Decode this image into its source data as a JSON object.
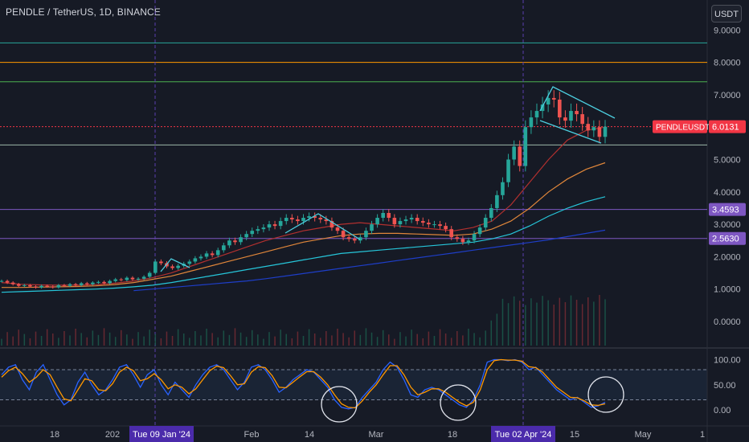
{
  "header": {
    "title": "PENDLE / TetherUS, 1D, BINANCE",
    "currency": "USDT"
  },
  "chart_data": {
    "type": "candlestick",
    "symbol": "PENDLE / TetherUS",
    "interval": "1D",
    "exchange": "BINANCE",
    "price_axis": {
      "ticks": [
        9.0,
        8.0,
        7.0,
        6.0,
        5.0,
        4.0,
        3.0,
        2.0,
        1.0,
        0.0
      ],
      "labels": [
        "9.0000",
        "8.0000",
        "7.0000",
        "6.0000",
        "5.0000",
        "4.0000",
        "3.0000",
        "2.0000",
        "1.0000",
        "0.0000"
      ]
    },
    "time_axis": {
      "labels": [
        "18",
        "202",
        "Tue 09 Jan '24",
        "Feb",
        "14",
        "Mar",
        "18",
        "Tue 02 Apr '24",
        "15",
        "May",
        "1"
      ]
    },
    "last_price": {
      "label": "PENDLEUSDT",
      "value": "6.0131",
      "color": "#f23645"
    },
    "price_labels": [
      {
        "value": "3.4593",
        "color": "#7e57c2"
      },
      {
        "value": "2.5630",
        "color": "#7e57c2"
      }
    ],
    "horizontal_levels": [
      {
        "price": 8.6,
        "color": "#26a69a"
      },
      {
        "price": 8.0,
        "color": "#ff9800"
      },
      {
        "price": 7.4,
        "color": "#4caf50"
      },
      {
        "price": 6.0131,
        "color": "#f23645",
        "style": "dotted"
      },
      {
        "price": 5.45,
        "color": "#9db8a8"
      },
      {
        "price": 3.4593,
        "color": "#7e57c2"
      },
      {
        "price": 2.563,
        "color": "#7e57c2"
      }
    ],
    "vertical_markers": [
      "Tue 09 Jan '24",
      "Tue 02 Apr '24"
    ],
    "close_series": [
      1.25,
      1.2,
      1.15,
      1.1,
      1.12,
      1.08,
      1.05,
      1.1,
      1.08,
      1.05,
      1.12,
      1.1,
      1.15,
      1.12,
      1.18,
      1.15,
      1.2,
      1.22,
      1.18,
      1.25,
      1.3,
      1.28,
      1.35,
      1.3,
      1.32,
      1.38,
      1.5,
      1.85,
      1.8,
      1.7,
      1.65,
      1.72,
      1.78,
      1.85,
      1.95,
      2.0,
      2.1,
      2.05,
      2.2,
      2.35,
      2.5,
      2.45,
      2.6,
      2.7,
      2.8,
      2.85,
      2.9,
      3.0,
      2.95,
      3.1,
      3.2,
      3.15,
      3.1,
      3.2,
      3.25,
      3.2,
      3.15,
      3.1,
      2.9,
      2.8,
      2.6,
      2.55,
      2.5,
      2.6,
      2.8,
      3.0,
      3.2,
      3.35,
      3.2,
      3.0,
      3.1,
      3.15,
      3.2,
      3.1,
      3.05,
      3.0,
      3.0,
      2.95,
      2.85,
      2.6,
      2.55,
      2.45,
      2.5,
      2.7,
      2.9,
      3.2,
      3.5,
      3.9,
      4.3,
      5.0,
      5.4,
      4.8,
      6.0,
      6.3,
      6.5,
      6.7,
      6.9,
      6.85,
      6.3,
      6.2,
      6.5,
      6.4,
      6.1,
      5.9,
      6.0,
      5.7,
      6.0131
    ],
    "moving_averages": [
      {
        "name": "",
        "color": "#b2302f",
        "values": [
          1.2,
          1.15,
          1.13,
          1.12,
          1.12,
          1.14,
          1.18,
          1.25,
          1.35,
          1.5,
          1.7,
          1.9,
          2.1,
          2.3,
          2.5,
          2.65,
          2.8,
          2.9,
          3.0,
          3.05,
          3.0,
          2.95,
          2.9,
          2.85,
          2.8,
          2.9,
          3.1,
          3.6,
          4.3,
          5.0,
          5.6,
          5.9,
          6.0
        ]
      },
      {
        "name": "",
        "color": "#e0863a",
        "values": [
          1.05,
          1.05,
          1.06,
          1.07,
          1.08,
          1.1,
          1.14,
          1.2,
          1.3,
          1.4,
          1.55,
          1.7,
          1.85,
          2.0,
          2.15,
          2.3,
          2.45,
          2.55,
          2.65,
          2.7,
          2.72,
          2.72,
          2.7,
          2.68,
          2.66,
          2.7,
          2.85,
          3.1,
          3.5,
          4.0,
          4.4,
          4.7,
          4.9
        ]
      },
      {
        "name": "",
        "color": "#26c6da",
        "values": [
          0.9,
          0.92,
          0.94,
          0.96,
          0.98,
          1.0,
          1.03,
          1.07,
          1.12,
          1.2,
          1.3,
          1.4,
          1.5,
          1.6,
          1.7,
          1.8,
          1.9,
          2.0,
          2.1,
          2.15,
          2.2,
          2.25,
          2.3,
          2.35,
          2.4,
          2.45,
          2.55,
          2.7,
          2.95,
          3.25,
          3.5,
          3.7,
          3.85
        ]
      },
      {
        "name": "",
        "color": "#1e3ec8",
        "values": [
          null,
          null,
          null,
          null,
          null,
          null,
          null,
          0.95,
          1.0,
          1.05,
          1.1,
          1.15,
          1.2,
          1.25,
          1.32,
          1.4,
          1.48,
          1.56,
          1.64,
          1.72,
          1.8,
          1.88,
          1.96,
          2.04,
          2.12,
          2.2,
          2.28,
          2.36,
          2.44,
          2.52,
          2.62,
          2.72,
          2.82
        ]
      }
    ],
    "oscillator": {
      "axis_ticks": [
        100.0,
        50.0,
        0.0
      ],
      "axis_labels": [
        "100.00",
        "50.00",
        "0.00"
      ],
      "bands": [
        80,
        20
      ],
      "k_values": [
        70,
        85,
        90,
        60,
        40,
        75,
        90,
        60,
        30,
        10,
        20,
        55,
        75,
        50,
        30,
        40,
        60,
        85,
        90,
        70,
        45,
        70,
        80,
        50,
        30,
        55,
        40,
        25,
        50,
        70,
        85,
        90,
        80,
        60,
        40,
        55,
        85,
        90,
        80,
        60,
        35,
        45,
        60,
        70,
        80,
        75,
        60,
        45,
        20,
        5,
        2,
        5,
        25,
        40,
        55,
        80,
        95,
        85,
        60,
        30,
        25,
        40,
        45,
        40,
        30,
        20,
        10,
        5,
        20,
        50,
        95,
        100,
        100,
        98,
        100,
        95,
        80,
        85,
        70,
        55,
        40,
        30,
        20,
        25,
        15,
        5,
        8,
        15
      ],
      "d_values": [
        65,
        78,
        85,
        72,
        55,
        65,
        80,
        70,
        45,
        22,
        18,
        40,
        62,
        58,
        40,
        38,
        52,
        75,
        85,
        78,
        58,
        62,
        72,
        60,
        42,
        50,
        45,
        32,
        42,
        60,
        78,
        87,
        84,
        68,
        50,
        52,
        75,
        86,
        84,
        68,
        45,
        44,
        55,
        66,
        76,
        76,
        65,
        50,
        30,
        12,
        5,
        4,
        18,
        35,
        50,
        70,
        88,
        88,
        70,
        45,
        30,
        35,
        42,
        42,
        35,
        25,
        15,
        8,
        15,
        40,
        80,
        98,
        100,
        99,
        99,
        97,
        86,
        84,
        75,
        60,
        45,
        35,
        25,
        24,
        18,
        10,
        9,
        12
      ]
    }
  }
}
